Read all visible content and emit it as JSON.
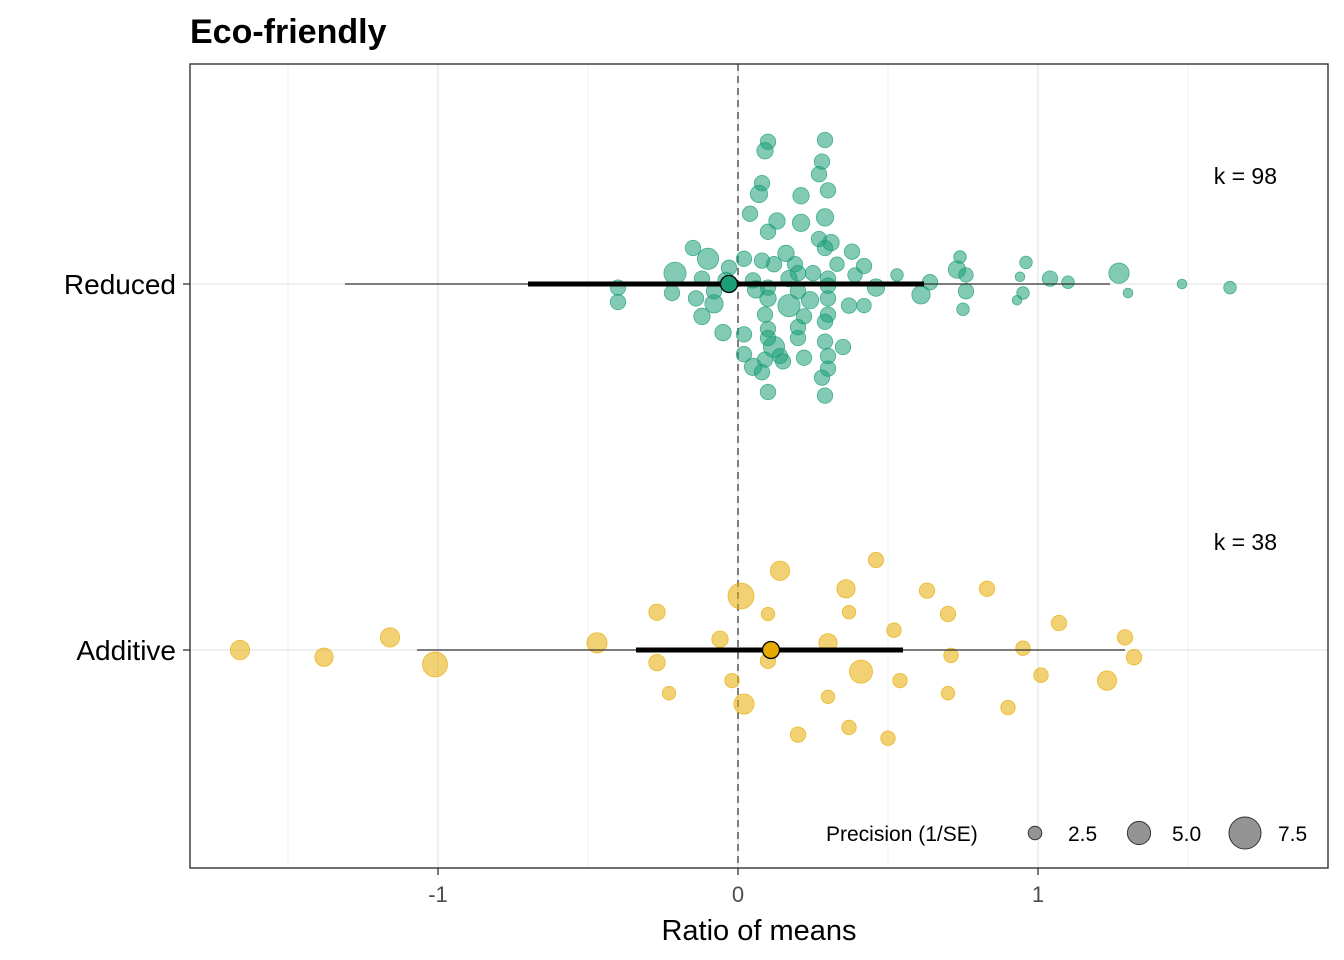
{
  "chart_data": {
    "type": "scatter",
    "title": "Eco-friendly",
    "xlabel": "Ratio of means",
    "ylabel": "",
    "xlim": [
      -1.83,
      1.9
    ],
    "xticks": [
      -1,
      0,
      1
    ],
    "xtick_labels": [
      "-1",
      "0",
      "1"
    ],
    "reference_line_x": 0,
    "grid": true,
    "categories": [
      "Reduced",
      "Additive"
    ],
    "series": [
      {
        "name": "Reduced",
        "color": "#1b9e77",
        "k_label": "k = 98",
        "estimate": -0.03,
        "ci": [
          -0.7,
          0.62
        ],
        "pi": [
          -1.31,
          1.24
        ],
        "points": [
          [
            0.1,
            0.79,
            2.6
          ],
          [
            0.29,
            0.8,
            2.6
          ],
          [
            0.09,
            0.74,
            2.8
          ],
          [
            0.28,
            0.68,
            2.6
          ],
          [
            0.27,
            0.61,
            2.6
          ],
          [
            0.08,
            0.56,
            2.6
          ],
          [
            0.07,
            0.5,
            3.0
          ],
          [
            0.21,
            0.49,
            2.8
          ],
          [
            0.3,
            0.52,
            2.6
          ],
          [
            0.04,
            0.39,
            2.6
          ],
          [
            0.13,
            0.35,
            2.8
          ],
          [
            0.21,
            0.34,
            3.0
          ],
          [
            0.29,
            0.37,
            3.0
          ],
          [
            0.1,
            0.29,
            2.6
          ],
          [
            0.27,
            0.25,
            2.6
          ],
          [
            0.31,
            0.23,
            2.8
          ],
          [
            -0.15,
            0.2,
            2.6
          ],
          [
            -0.1,
            0.14,
            3.8
          ],
          [
            0.02,
            0.14,
            2.6
          ],
          [
            0.16,
            0.17,
            2.8
          ],
          [
            0.29,
            0.2,
            2.6
          ],
          [
            0.38,
            0.18,
            2.6
          ],
          [
            0.08,
            0.13,
            2.6
          ],
          [
            0.19,
            0.11,
            2.6
          ],
          [
            0.33,
            0.11,
            2.4
          ],
          [
            -0.03,
            0.09,
            2.6
          ],
          [
            0.12,
            0.11,
            2.6
          ],
          [
            0.25,
            0.06,
            2.6
          ],
          [
            0.42,
            0.1,
            2.6
          ],
          [
            0.74,
            0.15,
            2.0
          ],
          [
            0.96,
            0.12,
            2.0
          ],
          [
            -0.21,
            0.06,
            4.0
          ],
          [
            -0.12,
            0.03,
            2.6
          ],
          [
            -0.04,
            0.02,
            2.8
          ],
          [
            0.05,
            0.02,
            2.6
          ],
          [
            0.17,
            0.03,
            2.8
          ],
          [
            0.2,
            0.06,
            2.6
          ],
          [
            0.3,
            0.03,
            2.6
          ],
          [
            0.39,
            0.05,
            2.4
          ],
          [
            0.53,
            0.05,
            2.0
          ],
          [
            0.64,
            0.01,
            2.6
          ],
          [
            0.73,
            0.08,
            3.0
          ],
          [
            0.76,
            0.05,
            2.4
          ],
          [
            0.94,
            0.04,
            1.4
          ],
          [
            1.04,
            0.03,
            2.6
          ],
          [
            1.1,
            0.01,
            2.0
          ],
          [
            1.27,
            0.06,
            3.6
          ],
          [
            1.48,
            0.0,
            1.4
          ],
          [
            1.64,
            -0.02,
            2.0
          ],
          [
            -0.4,
            -0.02,
            2.6
          ],
          [
            -0.22,
            -0.05,
            2.6
          ],
          [
            -0.08,
            -0.04,
            2.6
          ],
          [
            0.06,
            -0.03,
            3.0
          ],
          [
            0.1,
            -0.02,
            2.6
          ],
          [
            0.2,
            -0.04,
            2.6
          ],
          [
            0.3,
            -0.01,
            2.6
          ],
          [
            0.46,
            -0.02,
            3.0
          ],
          [
            0.61,
            -0.06,
            3.2
          ],
          [
            0.76,
            -0.04,
            2.6
          ],
          [
            0.95,
            -0.05,
            2.0
          ],
          [
            1.3,
            -0.05,
            1.4
          ],
          [
            -0.4,
            -0.1,
            2.6
          ],
          [
            -0.14,
            -0.08,
            2.6
          ],
          [
            -0.08,
            -0.11,
            3.2
          ],
          [
            0.1,
            -0.08,
            2.8
          ],
          [
            0.17,
            -0.12,
            4.0
          ],
          [
            0.24,
            -0.09,
            3.0
          ],
          [
            0.3,
            -0.08,
            2.6
          ],
          [
            0.37,
            -0.12,
            2.6
          ],
          [
            0.42,
            -0.12,
            2.4
          ],
          [
            0.93,
            -0.09,
            1.4
          ],
          [
            0.75,
            -0.14,
            2.0
          ],
          [
            -0.12,
            -0.18,
            2.8
          ],
          [
            0.09,
            -0.17,
            2.6
          ],
          [
            0.22,
            -0.18,
            2.6
          ],
          [
            0.3,
            -0.17,
            2.6
          ],
          [
            0.29,
            -0.21,
            2.6
          ],
          [
            0.1,
            -0.25,
            2.6
          ],
          [
            0.2,
            -0.24,
            2.6
          ],
          [
            0.1,
            -0.3,
            2.6
          ],
          [
            0.12,
            -0.35,
            3.8
          ],
          [
            0.2,
            -0.3,
            2.6
          ],
          [
            0.29,
            -0.32,
            2.6
          ],
          [
            0.35,
            -0.35,
            2.6
          ],
          [
            0.02,
            -0.39,
            2.6
          ],
          [
            0.09,
            -0.42,
            2.6
          ],
          [
            0.14,
            -0.4,
            2.6
          ],
          [
            0.22,
            -0.41,
            2.6
          ],
          [
            0.3,
            -0.4,
            2.6
          ],
          [
            -0.05,
            -0.27,
            2.8
          ],
          [
            0.05,
            -0.46,
            3.0
          ],
          [
            0.08,
            -0.49,
            2.6
          ],
          [
            0.15,
            -0.43,
            2.6
          ],
          [
            0.3,
            -0.47,
            2.6
          ],
          [
            0.28,
            -0.52,
            2.6
          ],
          [
            0.1,
            -0.6,
            2.6
          ],
          [
            0.29,
            -0.62,
            2.6
          ],
          [
            0.02,
            -0.28,
            2.6
          ]
        ]
      },
      {
        "name": "Additive",
        "color": "#e6ab02",
        "k_label": "k = 38",
        "estimate": 0.11,
        "ci": [
          -0.34,
          0.55
        ],
        "pi": [
          -1.07,
          1.29
        ],
        "points": [
          [
            0.46,
            0.5,
            2.6
          ],
          [
            0.14,
            0.44,
            3.4
          ],
          [
            0.36,
            0.34,
            3.2
          ],
          [
            0.63,
            0.33,
            2.6
          ],
          [
            0.83,
            0.34,
            2.6
          ],
          [
            0.01,
            0.3,
            4.8
          ],
          [
            -0.27,
            0.21,
            2.8
          ],
          [
            0.1,
            0.2,
            2.2
          ],
          [
            0.37,
            0.21,
            2.2
          ],
          [
            0.7,
            0.2,
            2.6
          ],
          [
            1.07,
            0.15,
            2.6
          ],
          [
            -1.16,
            0.07,
            3.4
          ],
          [
            -0.06,
            0.06,
            2.8
          ],
          [
            0.52,
            0.11,
            2.4
          ],
          [
            1.29,
            0.07,
            2.6
          ],
          [
            -1.66,
            0.0,
            3.4
          ],
          [
            -0.47,
            0.04,
            3.6
          ],
          [
            0.3,
            0.04,
            3.2
          ],
          [
            0.95,
            0.01,
            2.4
          ],
          [
            0.71,
            -0.03,
            2.4
          ],
          [
            -1.38,
            -0.04,
            3.2
          ],
          [
            -1.01,
            -0.08,
            4.6
          ],
          [
            -0.27,
            -0.07,
            2.8
          ],
          [
            0.1,
            -0.06,
            2.6
          ],
          [
            0.41,
            -0.12,
            4.2
          ],
          [
            1.32,
            -0.04,
            2.6
          ],
          [
            0.54,
            -0.17,
            2.4
          ],
          [
            1.01,
            -0.14,
            2.4
          ],
          [
            -0.02,
            -0.17,
            2.4
          ],
          [
            1.23,
            -0.17,
            3.4
          ],
          [
            -0.23,
            -0.24,
            2.2
          ],
          [
            0.3,
            -0.26,
            2.2
          ],
          [
            0.7,
            -0.24,
            2.2
          ],
          [
            0.02,
            -0.3,
            3.6
          ],
          [
            0.9,
            -0.32,
            2.4
          ],
          [
            0.2,
            -0.47,
            2.6
          ],
          [
            0.37,
            -0.43,
            2.4
          ],
          [
            0.5,
            -0.49,
            2.4
          ]
        ]
      }
    ],
    "legend": {
      "title": "Precision (1/SE)",
      "placement": "bottom-right",
      "entries": [
        {
          "label": "2.5",
          "value": 2.5
        },
        {
          "label": "5.0",
          "value": 5.0
        },
        {
          "label": "7.5",
          "value": 7.5
        }
      ]
    }
  }
}
